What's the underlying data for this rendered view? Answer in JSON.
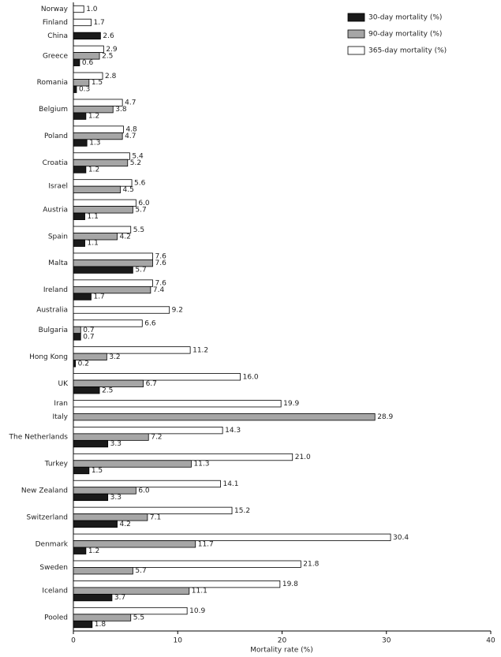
{
  "chart_data": {
    "type": "bar",
    "orientation": "horizontal",
    "x_label": "Mortality rate (%)",
    "categories": [
      "Norway",
      "Finland",
      "China",
      "Greece",
      "Romania",
      "Belgium",
      "Poland",
      "Croatia",
      "Israel",
      "Austria",
      "Spain",
      "Malta",
      "Ireland",
      "Australia",
      "Bulgaria",
      "Hong Kong",
      "UK",
      "Iran",
      "Italy",
      "The Netherlands",
      "Turkey",
      "New Zealand",
      "Switzerland",
      "Denmark",
      "Sweden",
      "Iceland",
      "Pooled"
    ],
    "series": [
      {
        "name": "30-day mortality (%)",
        "color": "#1a1a1a",
        "values": [
          null,
          null,
          2.6,
          0.6,
          0.3,
          1.2,
          1.3,
          1.2,
          null,
          1.1,
          1.1,
          5.7,
          1.7,
          null,
          0.7,
          0.2,
          2.5,
          null,
          null,
          3.3,
          1.5,
          3.3,
          4.2,
          1.2,
          null,
          3.7,
          1.8
        ],
        "value_labels": [
          null,
          null,
          "2.6",
          "0.6",
          "0.3",
          "1.2",
          "1.3",
          "1.2",
          null,
          "1.1",
          "1.1",
          "5.7",
          "1.7",
          null,
          "0.7",
          "0.2",
          "2.5",
          null,
          null,
          "3.3",
          "1.5",
          "3.3",
          "4.2",
          "1.2",
          null,
          "3.7",
          "1.8"
        ]
      },
      {
        "name": "90-day mortality (%)",
        "color": "#a6a6a6",
        "values": [
          null,
          null,
          null,
          2.5,
          1.5,
          3.8,
          4.7,
          5.2,
          4.5,
          5.7,
          4.2,
          7.6,
          7.4,
          null,
          0.7,
          3.2,
          6.7,
          null,
          28.9,
          7.2,
          11.3,
          6.0,
          7.1,
          11.7,
          5.7,
          11.1,
          5.5
        ],
        "value_labels": [
          null,
          null,
          null,
          "2.5",
          "1.5",
          "3.8",
          "4.7",
          "5.2",
          "4.5",
          "5.7",
          "4.2",
          "7.6",
          "7.4",
          null,
          "0.7",
          "3.2",
          "6.7",
          null,
          "28.9",
          "7.2",
          "11.3",
          "6.0",
          "7.1",
          "11.7",
          "5.7",
          "11.1",
          "5.5"
        ]
      },
      {
        "name": "365-day mortality (%)",
        "color": "#ffffff",
        "values": [
          1.0,
          1.7,
          null,
          2.9,
          2.8,
          4.7,
          4.8,
          5.4,
          5.6,
          6.0,
          5.5,
          7.6,
          7.6,
          9.2,
          6.6,
          11.2,
          16.0,
          19.9,
          null,
          14.3,
          21.0,
          14.1,
          15.2,
          30.4,
          21.8,
          19.8,
          10.9
        ],
        "value_labels": [
          "1.0",
          "1.7",
          null,
          "2.9",
          "2.8",
          "4.7",
          "4.8",
          "5.4",
          "5.6",
          "6.0",
          "5.5",
          "7.6",
          "7.6",
          "9.2",
          "6.6",
          "11.2",
          "16.0",
          "19.9",
          null,
          "14.3",
          "21.0",
          "14.1",
          "15.2",
          "30.4",
          "21.8",
          "19.8",
          "10.9"
        ]
      }
    ],
    "xlim": [
      0,
      40
    ],
    "xticks": [
      0,
      10,
      20,
      30,
      40
    ],
    "legend": "top-right"
  }
}
